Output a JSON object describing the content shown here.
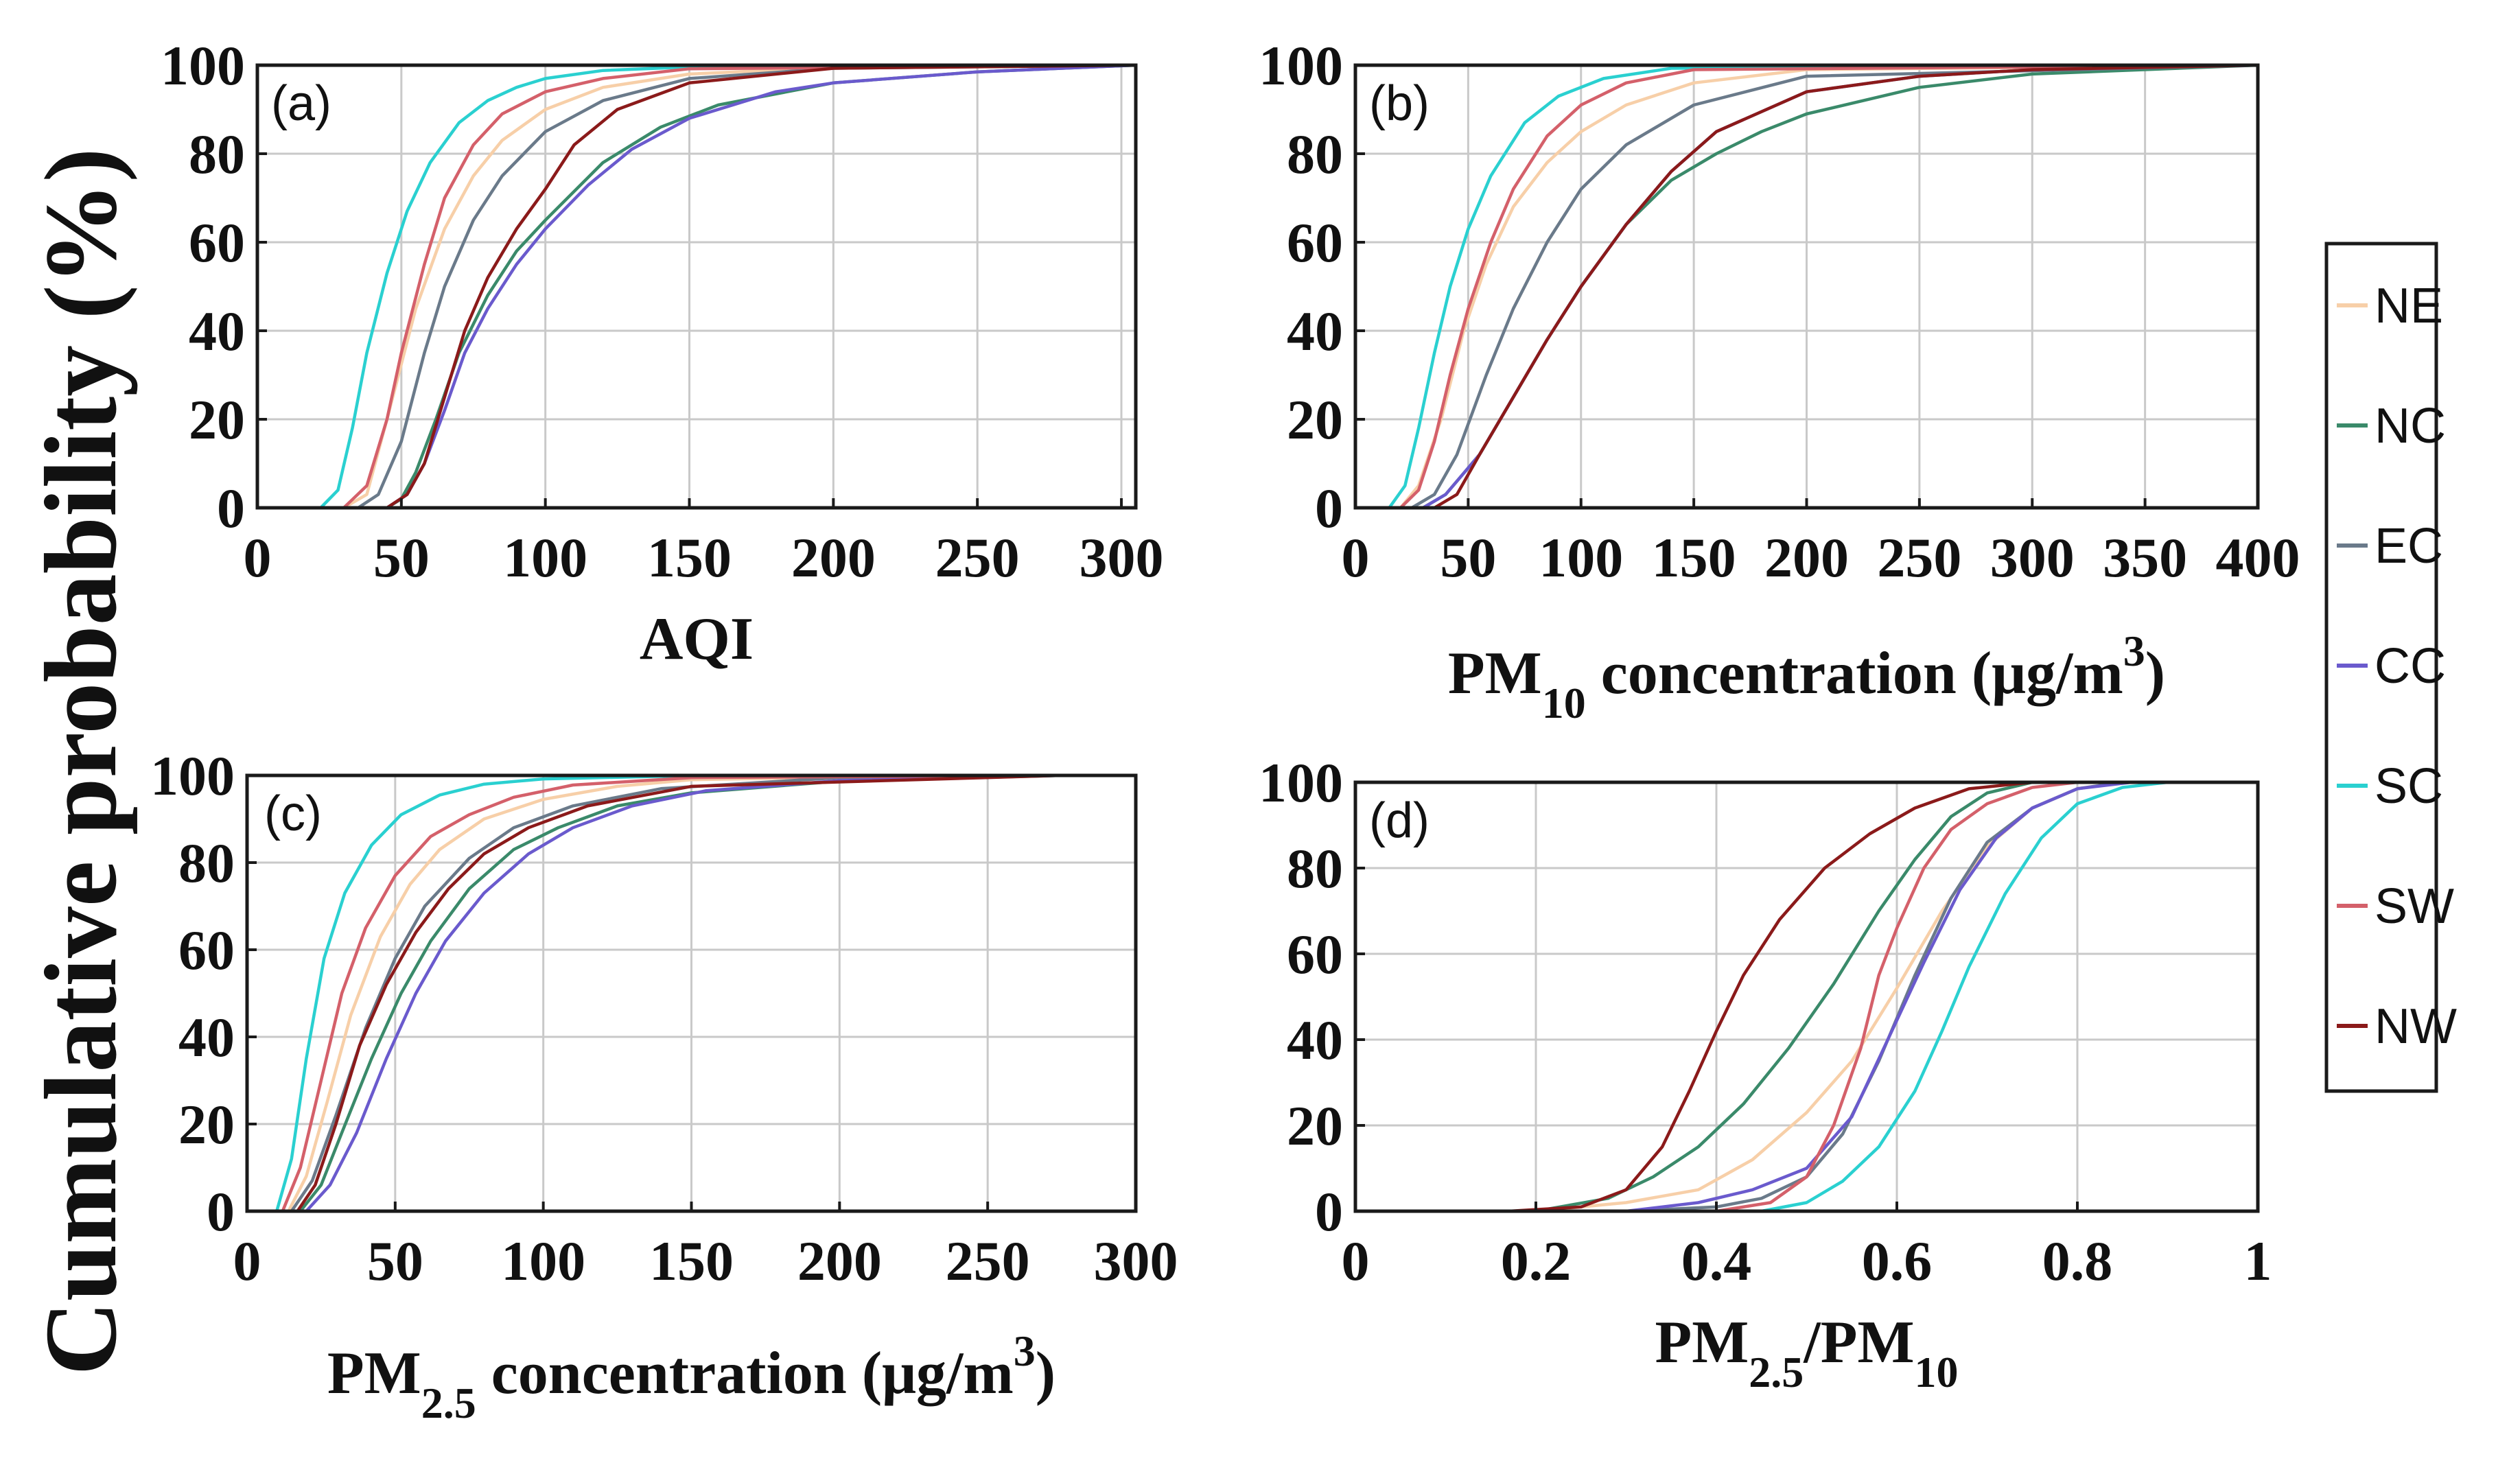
{
  "figure": {
    "ylabel": "Cumulative probability (%)"
  },
  "legend": {
    "items": [
      {
        "name": "NE",
        "color": "#f7cfa8"
      },
      {
        "name": "NC",
        "color": "#3a8a6a"
      },
      {
        "name": "EC",
        "color": "#6a7a8a"
      },
      {
        "name": "CC",
        "color": "#6a5acd"
      },
      {
        "name": "SC",
        "color": "#2ad0d0"
      },
      {
        "name": "SW",
        "color": "#d4606a"
      },
      {
        "name": "NW",
        "color": "#8b1a1a"
      }
    ]
  },
  "chart_data": [
    {
      "id": "a",
      "panel_label": "(a)",
      "type": "line",
      "xlabel": "AQI",
      "xlabel_sub": "",
      "xlabel_post": "",
      "xlabel_sup": "",
      "xlabel_end": "",
      "xlim": [
        0,
        305
      ],
      "ylim": [
        0,
        100
      ],
      "xticks": [
        0,
        50,
        100,
        150,
        200,
        250,
        300
      ],
      "yticks": [
        0,
        20,
        40,
        60,
        80,
        100
      ],
      "series": [
        {
          "name": "NE",
          "x": [
            30,
            38,
            45,
            55,
            65,
            75,
            85,
            100,
            120,
            150,
            200,
            305
          ],
          "y": [
            0,
            3,
            20,
            45,
            63,
            75,
            83,
            90,
            95,
            98,
            99.5,
            100
          ]
        },
        {
          "name": "NC",
          "x": [
            45,
            50,
            55,
            62,
            70,
            80,
            90,
            100,
            120,
            140,
            160,
            200,
            250,
            305
          ],
          "y": [
            0,
            2,
            8,
            20,
            35,
            48,
            58,
            65,
            78,
            86,
            91,
            96,
            98.5,
            100
          ]
        },
        {
          "name": "EC",
          "x": [
            35,
            42,
            50,
            58,
            65,
            75,
            85,
            100,
            120,
            150,
            200,
            305
          ],
          "y": [
            0,
            3,
            15,
            35,
            50,
            65,
            75,
            85,
            92,
            97,
            99.3,
            100
          ]
        },
        {
          "name": "CC",
          "x": [
            45,
            52,
            58,
            65,
            72,
            80,
            90,
            100,
            115,
            130,
            150,
            180,
            200,
            250,
            305
          ],
          "y": [
            0,
            3,
            10,
            22,
            35,
            45,
            55,
            63,
            73,
            81,
            88,
            94,
            96,
            98.5,
            100
          ]
        },
        {
          "name": "SC",
          "x": [
            22,
            28,
            33,
            38,
            45,
            52,
            60,
            70,
            80,
            90,
            100,
            120,
            150,
            305
          ],
          "y": [
            0,
            4,
            18,
            35,
            53,
            67,
            78,
            87,
            92,
            95,
            97,
            98.8,
            99.6,
            100
          ]
        },
        {
          "name": "SW",
          "x": [
            30,
            38,
            45,
            50,
            58,
            65,
            75,
            85,
            100,
            120,
            150,
            305
          ],
          "y": [
            0,
            5,
            20,
            35,
            55,
            70,
            82,
            89,
            94,
            97,
            99.2,
            100
          ]
        },
        {
          "name": "NW",
          "x": [
            45,
            52,
            58,
            65,
            72,
            80,
            90,
            100,
            110,
            125,
            150,
            200,
            305
          ],
          "y": [
            0,
            3,
            10,
            25,
            40,
            52,
            63,
            72,
            82,
            90,
            96,
            99.3,
            100
          ]
        }
      ]
    },
    {
      "id": "b",
      "panel_label": "(b)",
      "type": "line",
      "xlabel": "PM",
      "xlabel_sub": "10",
      "xlabel_post": " concentration (μg/m",
      "xlabel_sup": "3",
      "xlabel_end": ")",
      "xlim": [
        0,
        400
      ],
      "ylim": [
        0,
        100
      ],
      "xticks": [
        0,
        50,
        100,
        150,
        200,
        250,
        300,
        350,
        400
      ],
      "yticks": [
        0,
        20,
        40,
        60,
        80,
        100
      ],
      "series": [
        {
          "name": "NE",
          "x": [
            20,
            28,
            38,
            48,
            58,
            70,
            85,
            100,
            120,
            150,
            200,
            400
          ],
          "y": [
            0,
            5,
            20,
            40,
            55,
            68,
            78,
            85,
            91,
            96,
            99,
            100
          ]
        },
        {
          "name": "NC",
          "x": [
            30,
            40,
            55,
            70,
            85,
            100,
            120,
            140,
            160,
            180,
            200,
            250,
            300,
            400
          ],
          "y": [
            0,
            3,
            12,
            25,
            38,
            50,
            64,
            74,
            80,
            85,
            89,
            95,
            98,
            100
          ]
        },
        {
          "name": "EC",
          "x": [
            25,
            35,
            45,
            58,
            70,
            85,
            100,
            120,
            150,
            200,
            400
          ],
          "y": [
            0,
            3,
            12,
            30,
            45,
            60,
            72,
            82,
            91,
            97.5,
            100
          ]
        },
        {
          "name": "CC",
          "x": [
            30,
            40,
            55,
            70,
            85,
            100,
            120,
            140,
            160,
            200,
            250,
            300,
            400
          ],
          "y": [
            0,
            3,
            12,
            25,
            38,
            50,
            64,
            76,
            85,
            94,
            97.5,
            99,
            100
          ]
        },
        {
          "name": "SC",
          "x": [
            15,
            22,
            28,
            35,
            42,
            50,
            60,
            75,
            90,
            110,
            140,
            400
          ],
          "y": [
            0,
            5,
            18,
            35,
            50,
            63,
            75,
            87,
            93,
            97,
            99.3,
            100
          ]
        },
        {
          "name": "SW",
          "x": [
            20,
            28,
            35,
            42,
            50,
            60,
            70,
            85,
            100,
            120,
            150,
            400
          ],
          "y": [
            0,
            4,
            15,
            30,
            45,
            60,
            72,
            84,
            91,
            96,
            99,
            100
          ]
        },
        {
          "name": "NW",
          "x": [
            35,
            45,
            55,
            70,
            85,
            100,
            120,
            140,
            160,
            200,
            250,
            300,
            400
          ],
          "y": [
            0,
            3,
            12,
            25,
            38,
            50,
            64,
            76,
            85,
            94,
            97.5,
            99,
            100
          ]
        }
      ]
    },
    {
      "id": "c",
      "panel_label": "(c)",
      "type": "line",
      "xlabel": "PM",
      "xlabel_sub": "2.5",
      "xlabel_post": " concentration (μg/m",
      "xlabel_sup": "3",
      "xlabel_end": ")",
      "xlim": [
        0,
        300
      ],
      "ylim": [
        0,
        100
      ],
      "xticks": [
        0,
        50,
        100,
        150,
        200,
        250,
        300
      ],
      "yticks": [
        0,
        20,
        40,
        60,
        80,
        100
      ],
      "series": [
        {
          "name": "NE",
          "x": [
            14,
            20,
            27,
            35,
            45,
            55,
            65,
            80,
            100,
            125,
            150,
            200,
            275
          ],
          "y": [
            0,
            8,
            25,
            45,
            63,
            75,
            83,
            90,
            94.5,
            97.5,
            99,
            99.6,
            100
          ]
        },
        {
          "name": "NC",
          "x": [
            18,
            25,
            32,
            42,
            52,
            62,
            75,
            90,
            105,
            125,
            150,
            200,
            275
          ],
          "y": [
            0,
            6,
            18,
            35,
            50,
            62,
            74,
            83,
            88,
            93,
            96,
            98.7,
            100
          ]
        },
        {
          "name": "EC",
          "x": [
            15,
            22,
            30,
            40,
            50,
            60,
            75,
            90,
            110,
            140,
            200,
            275
          ],
          "y": [
            0,
            7,
            22,
            42,
            58,
            70,
            81,
            88,
            93,
            97,
            99.5,
            100
          ]
        },
        {
          "name": "CC",
          "x": [
            20,
            28,
            37,
            47,
            57,
            67,
            80,
            95,
            110,
            130,
            155,
            200,
            275
          ],
          "y": [
            0,
            6,
            18,
            35,
            50,
            62,
            73,
            82,
            88,
            93,
            96.5,
            98.8,
            100
          ]
        },
        {
          "name": "SC",
          "x": [
            10,
            15,
            20,
            26,
            33,
            42,
            52,
            65,
            80,
            100,
            140,
            275
          ],
          "y": [
            0,
            12,
            35,
            58,
            73,
            84,
            91,
            95.5,
            98,
            99.2,
            99.8,
            100
          ]
        },
        {
          "name": "SW",
          "x": [
            12,
            18,
            25,
            32,
            40,
            50,
            62,
            75,
            90,
            110,
            150,
            275
          ],
          "y": [
            0,
            10,
            30,
            50,
            65,
            77,
            86,
            91,
            95,
            97.8,
            99.5,
            100
          ]
        },
        {
          "name": "NW",
          "x": [
            17,
            23,
            30,
            38,
            47,
            57,
            68,
            80,
            95,
            115,
            150,
            275
          ],
          "y": [
            0,
            6,
            20,
            38,
            52,
            64,
            74,
            82,
            88,
            93,
            97.5,
            100
          ]
        }
      ]
    },
    {
      "id": "d",
      "panel_label": "(d)",
      "type": "line",
      "xlabel": "PM",
      "xlabel_sub": "2.5",
      "xlabel_post": "/PM",
      "xlabel_sup": "",
      "xlabel_end": "",
      "xlabel_sub2": "10",
      "xlim": [
        0,
        1
      ],
      "ylim": [
        0,
        100
      ],
      "xticks": [
        0,
        0.2,
        0.4,
        0.6,
        0.8,
        1
      ],
      "xtick_labels": [
        "0",
        "0.2",
        "0.4",
        "0.6",
        "0.8",
        "1"
      ],
      "yticks": [
        0,
        20,
        40,
        60,
        80,
        100
      ],
      "series": [
        {
          "name": "NE",
          "x": [
            0.2,
            0.3,
            0.38,
            0.44,
            0.5,
            0.55,
            0.6,
            0.65,
            0.7,
            0.75,
            0.8,
            0.85
          ],
          "y": [
            0,
            2,
            5,
            12,
            23,
            35,
            52,
            70,
            85,
            94,
            98.5,
            100
          ]
        },
        {
          "name": "NC",
          "x": [
            0.2,
            0.28,
            0.33,
            0.38,
            0.43,
            0.48,
            0.53,
            0.58,
            0.62,
            0.66,
            0.7,
            0.75
          ],
          "y": [
            0,
            3,
            8,
            15,
            25,
            38,
            53,
            70,
            82,
            92,
            97.5,
            100
          ]
        },
        {
          "name": "EC",
          "x": [
            0.3,
            0.4,
            0.45,
            0.5,
            0.54,
            0.58,
            0.62,
            0.66,
            0.7,
            0.75,
            0.8,
            0.85
          ],
          "y": [
            0,
            1,
            3,
            8,
            18,
            35,
            55,
            73,
            86,
            94,
            98.5,
            100
          ]
        },
        {
          "name": "CC",
          "x": [
            0.3,
            0.38,
            0.44,
            0.5,
            0.55,
            0.59,
            0.63,
            0.67,
            0.71,
            0.75,
            0.8,
            0.86
          ],
          "y": [
            0,
            2,
            5,
            10,
            22,
            40,
            58,
            75,
            87,
            94,
            98.5,
            100
          ]
        },
        {
          "name": "SC",
          "x": [
            0.45,
            0.5,
            0.54,
            0.58,
            0.62,
            0.65,
            0.68,
            0.72,
            0.76,
            0.8,
            0.85,
            0.9
          ],
          "y": [
            0,
            2,
            7,
            15,
            28,
            42,
            57,
            74,
            87,
            95,
            98.8,
            100
          ]
        },
        {
          "name": "SW",
          "x": [
            0.4,
            0.46,
            0.5,
            0.53,
            0.56,
            0.58,
            0.6,
            0.63,
            0.66,
            0.7,
            0.75,
            0.8
          ],
          "y": [
            0,
            2,
            8,
            20,
            38,
            55,
            66,
            80,
            89,
            95,
            98.8,
            100
          ]
        },
        {
          "name": "NW",
          "x": [
            0.17,
            0.25,
            0.3,
            0.34,
            0.37,
            0.4,
            0.43,
            0.47,
            0.52,
            0.57,
            0.62,
            0.68,
            0.75
          ],
          "y": [
            0,
            1,
            5,
            15,
            28,
            42,
            55,
            68,
            80,
            88,
            94,
            98.5,
            100
          ]
        }
      ]
    }
  ]
}
